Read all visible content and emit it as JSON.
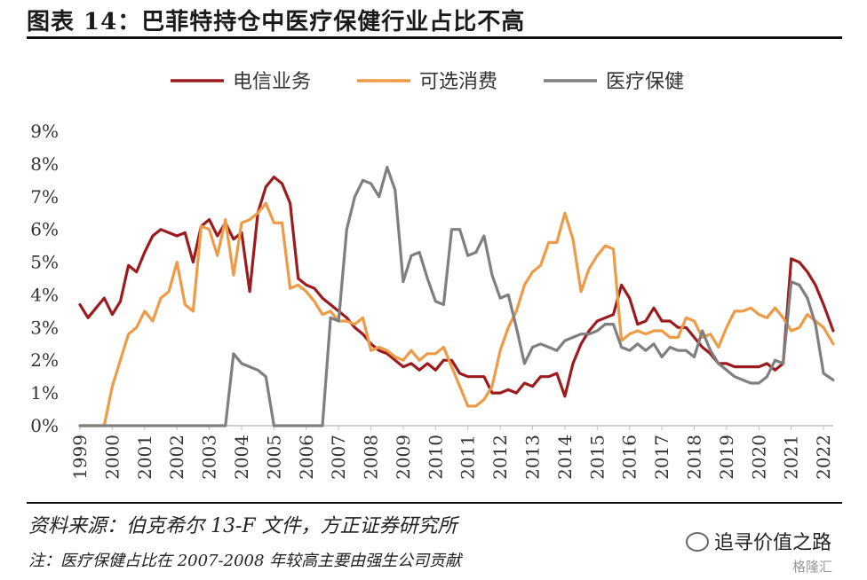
{
  "title": "图表 14：巴菲特持仓中医疗保健行业占比不高",
  "source": "资料来源：伯克希尔 13-F 文件，方正证券研究所",
  "note": "注：医疗保健占比在 2007-2008 年较高主要由强生公司贡献",
  "watermark": "追寻价值之路",
  "watermark_sub": "格隆汇",
  "chart_data": {
    "type": "line",
    "title": "",
    "xlabel": "",
    "ylabel": "",
    "x_ticks": [
      "1999",
      "2000",
      "2001",
      "2002",
      "2003",
      "2004",
      "2005",
      "2006",
      "2007",
      "2008",
      "2009",
      "2010",
      "2011",
      "2012",
      "2013",
      "2014",
      "2015",
      "2016",
      "2017",
      "2018",
      "2019",
      "2020",
      "2021",
      "2022"
    ],
    "x_range": [
      1999,
      2022.3
    ],
    "y_ticks": [
      "0%",
      "1%",
      "2%",
      "3%",
      "4%",
      "5%",
      "6%",
      "7%",
      "8%",
      "9%"
    ],
    "ylim": [
      0,
      9
    ],
    "legend_position": "top",
    "grid": false,
    "series": [
      {
        "name": "电信业务",
        "color": "#9b1b1e",
        "points": [
          [
            1999.0,
            3.7
          ],
          [
            1999.25,
            3.3
          ],
          [
            1999.5,
            3.6
          ],
          [
            1999.75,
            3.9
          ],
          [
            2000.0,
            3.4
          ],
          [
            2000.25,
            3.8
          ],
          [
            2000.5,
            4.9
          ],
          [
            2000.75,
            4.7
          ],
          [
            2001.0,
            5.3
          ],
          [
            2001.25,
            5.8
          ],
          [
            2001.5,
            6.0
          ],
          [
            2001.75,
            5.9
          ],
          [
            2002.0,
            5.8
          ],
          [
            2002.25,
            5.9
          ],
          [
            2002.5,
            5.0
          ],
          [
            2002.75,
            6.1
          ],
          [
            2003.0,
            6.3
          ],
          [
            2003.25,
            5.8
          ],
          [
            2003.5,
            6.2
          ],
          [
            2003.75,
            5.7
          ],
          [
            2004.0,
            5.9
          ],
          [
            2004.25,
            4.1
          ],
          [
            2004.5,
            6.5
          ],
          [
            2004.75,
            7.3
          ],
          [
            2005.0,
            7.6
          ],
          [
            2005.25,
            7.4
          ],
          [
            2005.5,
            6.8
          ],
          [
            2005.75,
            4.5
          ],
          [
            2006.0,
            4.3
          ],
          [
            2006.25,
            4.2
          ],
          [
            2006.5,
            3.9
          ],
          [
            2006.75,
            3.7
          ],
          [
            2007.0,
            3.5
          ],
          [
            2007.25,
            3.3
          ],
          [
            2007.5,
            3.0
          ],
          [
            2007.75,
            2.8
          ],
          [
            2008.0,
            2.5
          ],
          [
            2008.25,
            2.3
          ],
          [
            2008.5,
            2.2
          ],
          [
            2008.75,
            2.0
          ],
          [
            2009.0,
            1.8
          ],
          [
            2009.25,
            1.9
          ],
          [
            2009.5,
            1.7
          ],
          [
            2009.75,
            1.9
          ],
          [
            2010.0,
            1.7
          ],
          [
            2010.25,
            2.0
          ],
          [
            2010.5,
            2.0
          ],
          [
            2010.75,
            1.6
          ],
          [
            2011.0,
            1.5
          ],
          [
            2011.25,
            1.5
          ],
          [
            2011.5,
            1.5
          ],
          [
            2011.75,
            1.0
          ],
          [
            2012.0,
            1.0
          ],
          [
            2012.25,
            1.1
          ],
          [
            2012.5,
            1.0
          ],
          [
            2012.75,
            1.3
          ],
          [
            2013.0,
            1.2
          ],
          [
            2013.25,
            1.5
          ],
          [
            2013.5,
            1.5
          ],
          [
            2013.75,
            1.6
          ],
          [
            2014.0,
            0.9
          ],
          [
            2014.25,
            1.9
          ],
          [
            2014.5,
            2.5
          ],
          [
            2014.75,
            2.9
          ],
          [
            2015.0,
            3.2
          ],
          [
            2015.25,
            3.3
          ],
          [
            2015.5,
            3.4
          ],
          [
            2015.75,
            4.3
          ],
          [
            2016.0,
            3.9
          ],
          [
            2016.25,
            3.1
          ],
          [
            2016.5,
            3.2
          ],
          [
            2016.75,
            3.6
          ],
          [
            2017.0,
            3.2
          ],
          [
            2017.25,
            3.2
          ],
          [
            2017.5,
            3.0
          ],
          [
            2017.75,
            3.0
          ],
          [
            2018.0,
            2.7
          ],
          [
            2018.25,
            2.4
          ],
          [
            2018.5,
            2.2
          ],
          [
            2018.75,
            1.9
          ],
          [
            2019.0,
            1.9
          ],
          [
            2019.25,
            1.8
          ],
          [
            2019.5,
            1.8
          ],
          [
            2019.75,
            1.8
          ],
          [
            2020.0,
            1.8
          ],
          [
            2020.25,
            1.9
          ],
          [
            2020.5,
            1.7
          ],
          [
            2020.75,
            1.9
          ],
          [
            2021.0,
            5.1
          ],
          [
            2021.25,
            5.0
          ],
          [
            2021.5,
            4.7
          ],
          [
            2021.75,
            4.3
          ],
          [
            2022.0,
            3.7
          ],
          [
            2022.3,
            2.9
          ]
        ]
      },
      {
        "name": "可选消费",
        "color": "#ee9a47",
        "points": [
          [
            1999.0,
            0.0
          ],
          [
            1999.25,
            0.0
          ],
          [
            1999.5,
            0.0
          ],
          [
            1999.75,
            0.0
          ],
          [
            2000.0,
            1.2
          ],
          [
            2000.25,
            2.0
          ],
          [
            2000.5,
            2.8
          ],
          [
            2000.75,
            3.0
          ],
          [
            2001.0,
            3.5
          ],
          [
            2001.25,
            3.2
          ],
          [
            2001.5,
            3.9
          ],
          [
            2001.75,
            4.1
          ],
          [
            2002.0,
            5.0
          ],
          [
            2002.25,
            3.7
          ],
          [
            2002.5,
            3.5
          ],
          [
            2002.75,
            6.1
          ],
          [
            2003.0,
            6.0
          ],
          [
            2003.25,
            5.2
          ],
          [
            2003.5,
            6.3
          ],
          [
            2003.75,
            4.6
          ],
          [
            2004.0,
            6.2
          ],
          [
            2004.25,
            6.3
          ],
          [
            2004.5,
            6.5
          ],
          [
            2004.75,
            6.8
          ],
          [
            2005.0,
            6.2
          ],
          [
            2005.25,
            6.2
          ],
          [
            2005.5,
            4.2
          ],
          [
            2005.75,
            4.3
          ],
          [
            2006.0,
            4.1
          ],
          [
            2006.25,
            3.8
          ],
          [
            2006.5,
            3.4
          ],
          [
            2006.75,
            3.5
          ],
          [
            2007.0,
            3.2
          ],
          [
            2007.25,
            3.2
          ],
          [
            2007.5,
            3.1
          ],
          [
            2007.75,
            3.3
          ],
          [
            2008.0,
            2.3
          ],
          [
            2008.25,
            2.4
          ],
          [
            2008.5,
            2.3
          ],
          [
            2008.75,
            2.1
          ],
          [
            2009.0,
            2.0
          ],
          [
            2009.25,
            2.3
          ],
          [
            2009.5,
            2.0
          ],
          [
            2009.75,
            2.2
          ],
          [
            2010.0,
            2.2
          ],
          [
            2010.25,
            2.4
          ],
          [
            2010.5,
            1.8
          ],
          [
            2010.75,
            1.2
          ],
          [
            2011.0,
            0.6
          ],
          [
            2011.25,
            0.6
          ],
          [
            2011.5,
            0.8
          ],
          [
            2011.75,
            1.2
          ],
          [
            2012.0,
            2.3
          ],
          [
            2012.25,
            3.0
          ],
          [
            2012.5,
            3.5
          ],
          [
            2012.75,
            4.3
          ],
          [
            2013.0,
            4.7
          ],
          [
            2013.25,
            4.9
          ],
          [
            2013.5,
            5.6
          ],
          [
            2013.75,
            5.6
          ],
          [
            2014.0,
            6.5
          ],
          [
            2014.25,
            5.7
          ],
          [
            2014.5,
            4.1
          ],
          [
            2014.75,
            4.8
          ],
          [
            2015.0,
            5.2
          ],
          [
            2015.25,
            5.5
          ],
          [
            2015.5,
            5.4
          ],
          [
            2015.75,
            2.6
          ],
          [
            2016.0,
            2.8
          ],
          [
            2016.25,
            2.9
          ],
          [
            2016.5,
            2.8
          ],
          [
            2016.75,
            2.9
          ],
          [
            2017.0,
            2.9
          ],
          [
            2017.25,
            2.7
          ],
          [
            2017.5,
            2.7
          ],
          [
            2017.75,
            3.3
          ],
          [
            2018.0,
            3.2
          ],
          [
            2018.25,
            2.7
          ],
          [
            2018.5,
            2.8
          ],
          [
            2018.75,
            2.4
          ],
          [
            2019.0,
            3.0
          ],
          [
            2019.25,
            3.5
          ],
          [
            2019.5,
            3.5
          ],
          [
            2019.75,
            3.6
          ],
          [
            2020.0,
            3.4
          ],
          [
            2020.25,
            3.3
          ],
          [
            2020.5,
            3.6
          ],
          [
            2020.75,
            3.3
          ],
          [
            2021.0,
            2.9
          ],
          [
            2021.25,
            3.0
          ],
          [
            2021.5,
            3.4
          ],
          [
            2021.75,
            3.2
          ],
          [
            2022.0,
            3.0
          ],
          [
            2022.3,
            2.5
          ]
        ]
      },
      {
        "name": "医疗保健",
        "color": "#7f7f7f",
        "points": [
          [
            1999.0,
            0.0
          ],
          [
            1999.5,
            0.0
          ],
          [
            2000.0,
            0.0
          ],
          [
            2000.5,
            0.0
          ],
          [
            2001.0,
            0.0
          ],
          [
            2001.5,
            0.0
          ],
          [
            2002.0,
            0.0
          ],
          [
            2002.5,
            0.0
          ],
          [
            2003.0,
            0.0
          ],
          [
            2003.5,
            0.0
          ],
          [
            2003.75,
            2.2
          ],
          [
            2004.0,
            1.9
          ],
          [
            2004.25,
            1.8
          ],
          [
            2004.5,
            1.7
          ],
          [
            2004.75,
            1.5
          ],
          [
            2005.0,
            0.0
          ],
          [
            2005.5,
            0.0
          ],
          [
            2006.0,
            0.0
          ],
          [
            2006.25,
            0.0
          ],
          [
            2006.5,
            0.0
          ],
          [
            2006.75,
            3.3
          ],
          [
            2007.0,
            3.2
          ],
          [
            2007.25,
            6.0
          ],
          [
            2007.5,
            7.0
          ],
          [
            2007.75,
            7.5
          ],
          [
            2008.0,
            7.4
          ],
          [
            2008.25,
            7.0
          ],
          [
            2008.5,
            7.9
          ],
          [
            2008.75,
            7.2
          ],
          [
            2009.0,
            4.4
          ],
          [
            2009.25,
            5.2
          ],
          [
            2009.5,
            5.3
          ],
          [
            2009.75,
            4.5
          ],
          [
            2010.0,
            3.8
          ],
          [
            2010.25,
            3.7
          ],
          [
            2010.5,
            6.0
          ],
          [
            2010.75,
            6.0
          ],
          [
            2011.0,
            5.2
          ],
          [
            2011.25,
            5.3
          ],
          [
            2011.5,
            5.8
          ],
          [
            2011.75,
            4.6
          ],
          [
            2012.0,
            3.9
          ],
          [
            2012.25,
            4.0
          ],
          [
            2012.5,
            3.0
          ],
          [
            2012.75,
            1.9
          ],
          [
            2013.0,
            2.4
          ],
          [
            2013.25,
            2.5
          ],
          [
            2013.5,
            2.4
          ],
          [
            2013.75,
            2.3
          ],
          [
            2014.0,
            2.6
          ],
          [
            2014.25,
            2.7
          ],
          [
            2014.5,
            2.8
          ],
          [
            2014.75,
            2.8
          ],
          [
            2015.0,
            2.9
          ],
          [
            2015.25,
            3.1
          ],
          [
            2015.5,
            3.1
          ],
          [
            2015.75,
            2.4
          ],
          [
            2016.0,
            2.3
          ],
          [
            2016.25,
            2.5
          ],
          [
            2016.5,
            2.3
          ],
          [
            2016.75,
            2.5
          ],
          [
            2017.0,
            2.1
          ],
          [
            2017.25,
            2.4
          ],
          [
            2017.5,
            2.3
          ],
          [
            2017.75,
            2.3
          ],
          [
            2018.0,
            2.1
          ],
          [
            2018.25,
            2.9
          ],
          [
            2018.5,
            2.3
          ],
          [
            2018.75,
            1.9
          ],
          [
            2019.0,
            1.7
          ],
          [
            2019.25,
            1.5
          ],
          [
            2019.5,
            1.4
          ],
          [
            2019.75,
            1.3
          ],
          [
            2020.0,
            1.3
          ],
          [
            2020.25,
            1.5
          ],
          [
            2020.5,
            2.0
          ],
          [
            2020.75,
            1.9
          ],
          [
            2021.0,
            4.4
          ],
          [
            2021.25,
            4.3
          ],
          [
            2021.5,
            3.9
          ],
          [
            2021.75,
            3.1
          ],
          [
            2022.0,
            1.6
          ],
          [
            2022.3,
            1.4
          ]
        ]
      }
    ]
  }
}
